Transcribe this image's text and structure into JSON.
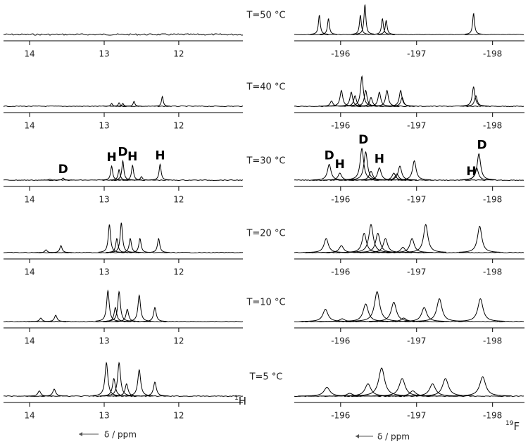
{
  "chart_data": [
    {
      "type": "spectrum",
      "title": "T=50 °C",
      "xlim": [
        14.35,
        11.14
      ],
      "xticks": [
        14,
        13,
        12
      ],
      "x": [],
      "values": []
    },
    {
      "type": "spectrum",
      "xlim": [
        -195.39,
        -198.42
      ],
      "xticks": [
        -196,
        -197,
        -198
      ],
      "x": [
        -195.72,
        -195.84,
        -196.26,
        -196.32,
        -196.55,
        -196.6,
        -197.75
      ],
      "values": [
        55,
        45,
        55,
        85,
        45,
        40,
        60
      ]
    },
    {
      "type": "spectrum",
      "title": "T=40 °C",
      "xlim": [
        14.35,
        11.14
      ],
      "xticks": [
        14,
        13,
        12
      ],
      "x": [
        12.9,
        12.8,
        12.75,
        12.6,
        12.22
      ],
      "values": [
        8,
        10,
        8,
        14,
        28
      ]
    },
    {
      "type": "spectrum",
      "xlim": [
        -195.39,
        -198.42
      ],
      "xticks": [
        -196,
        -197,
        -198
      ],
      "x": [
        -195.88,
        -196.01,
        -196.14,
        -196.19,
        -196.28,
        -196.33,
        -196.4,
        -196.51,
        -196.61,
        -196.79,
        -196.81,
        -197.75,
        -197.78
      ],
      "values": [
        15,
        45,
        40,
        30,
        85,
        45,
        25,
        40,
        45,
        45,
        25,
        55,
        30
      ]
    },
    {
      "type": "spectrum",
      "title": "T=30 °C",
      "xlim": [
        14.35,
        11.14
      ],
      "xticks": [
        14,
        13,
        12
      ],
      "x": [
        13.73,
        13.55,
        12.9,
        12.8,
        12.75,
        12.62,
        12.5,
        12.25
      ],
      "values": [
        3,
        6,
        40,
        30,
        55,
        42,
        10,
        45
      ],
      "annotations": [
        {
          "text": "D",
          "x": 13.55
        },
        {
          "text": "H",
          "x": 12.9
        },
        {
          "text": "D",
          "x": 12.75
        },
        {
          "text": "H",
          "x": 12.62
        },
        {
          "text": "H",
          "x": 12.25
        }
      ]
    },
    {
      "type": "spectrum",
      "xlim": [
        -195.39,
        -198.42
      ],
      "xticks": [
        -196,
        -197,
        -198
      ],
      "x": [
        -195.85,
        -195.99,
        -196.28,
        -196.33,
        -196.4,
        -196.51,
        -196.7,
        -196.74,
        -196.78,
        -196.97,
        -197.79,
        -197.82
      ],
      "values": [
        45,
        20,
        90,
        80,
        25,
        35,
        20,
        18,
        40,
        55,
        35,
        75
      ],
      "annotations": [
        {
          "text": "D",
          "x": -195.85
        },
        {
          "text": "H",
          "x": -195.99
        },
        {
          "text": "D",
          "x": -196.3
        },
        {
          "text": "H",
          "x": -196.51
        },
        {
          "text": "H",
          "x": -197.72
        },
        {
          "text": "D",
          "x": -197.86
        }
      ]
    },
    {
      "type": "spectrum",
      "title": "T=20 °C",
      "xlim": [
        14.35,
        11.14
      ],
      "xticks": [
        14,
        13,
        12
      ],
      "x": [
        13.78,
        13.58,
        12.93,
        12.83,
        12.77,
        12.65,
        12.52,
        12.27
      ],
      "values": [
        8,
        20,
        80,
        40,
        85,
        40,
        40,
        40
      ]
    },
    {
      "type": "spectrum",
      "xlim": [
        -195.39,
        -198.42
      ],
      "xticks": [
        -196,
        -197,
        -198
      ],
      "x": [
        -195.81,
        -196.01,
        -196.31,
        -196.4,
        -196.49,
        -196.59,
        -196.82,
        -196.94,
        -197.12,
        -197.83
      ],
      "values": [
        40,
        20,
        55,
        80,
        55,
        40,
        15,
        40,
        80,
        75
      ]
    },
    {
      "type": "spectrum",
      "title": "T=10 °C",
      "xlim": [
        14.35,
        11.14
      ],
      "xticks": [
        14,
        13,
        12
      ],
      "x": [
        13.85,
        13.65,
        12.95,
        12.85,
        12.8,
        12.69,
        12.53,
        12.32
      ],
      "values": [
        10,
        18,
        88,
        40,
        85,
        35,
        75,
        40
      ]
    },
    {
      "type": "spectrum",
      "xlim": [
        -195.39,
        -198.42
      ],
      "xticks": [
        -196,
        -197,
        -198
      ],
      "x": [
        -195.8,
        -196.02,
        -196.33,
        -196.48,
        -196.7,
        -196.83,
        -197.1,
        -197.3,
        -197.84
      ],
      "values": [
        35,
        8,
        50,
        85,
        55,
        10,
        40,
        65,
        65
      ]
    },
    {
      "type": "spectrum",
      "title": "T=5 °C",
      "xlim": [
        14.35,
        11.14
      ],
      "xticks": [
        14,
        13,
        12
      ],
      "x": [
        13.87,
        13.67,
        12.97,
        12.87,
        12.8,
        12.7,
        12.53,
        12.32
      ],
      "values": [
        15,
        20,
        95,
        50,
        95,
        35,
        75,
        40
      ]
    },
    {
      "type": "spectrum",
      "xlim": [
        -195.39,
        -198.42
      ],
      "xticks": [
        -196,
        -197,
        -198
      ],
      "x": [
        -195.82,
        -196.12,
        -196.36,
        -196.54,
        -196.81,
        -196.95,
        -197.21,
        -197.38,
        -197.87
      ],
      "values": [
        25,
        8,
        35,
        80,
        50,
        15,
        35,
        50,
        55
      ]
    }
  ],
  "nuclei": [
    {
      "mass": "1",
      "symbol": "H",
      "axis_label": "δ / ppm"
    },
    {
      "mass": "19",
      "symbol": "F",
      "axis_label": "δ / ppm"
    }
  ]
}
